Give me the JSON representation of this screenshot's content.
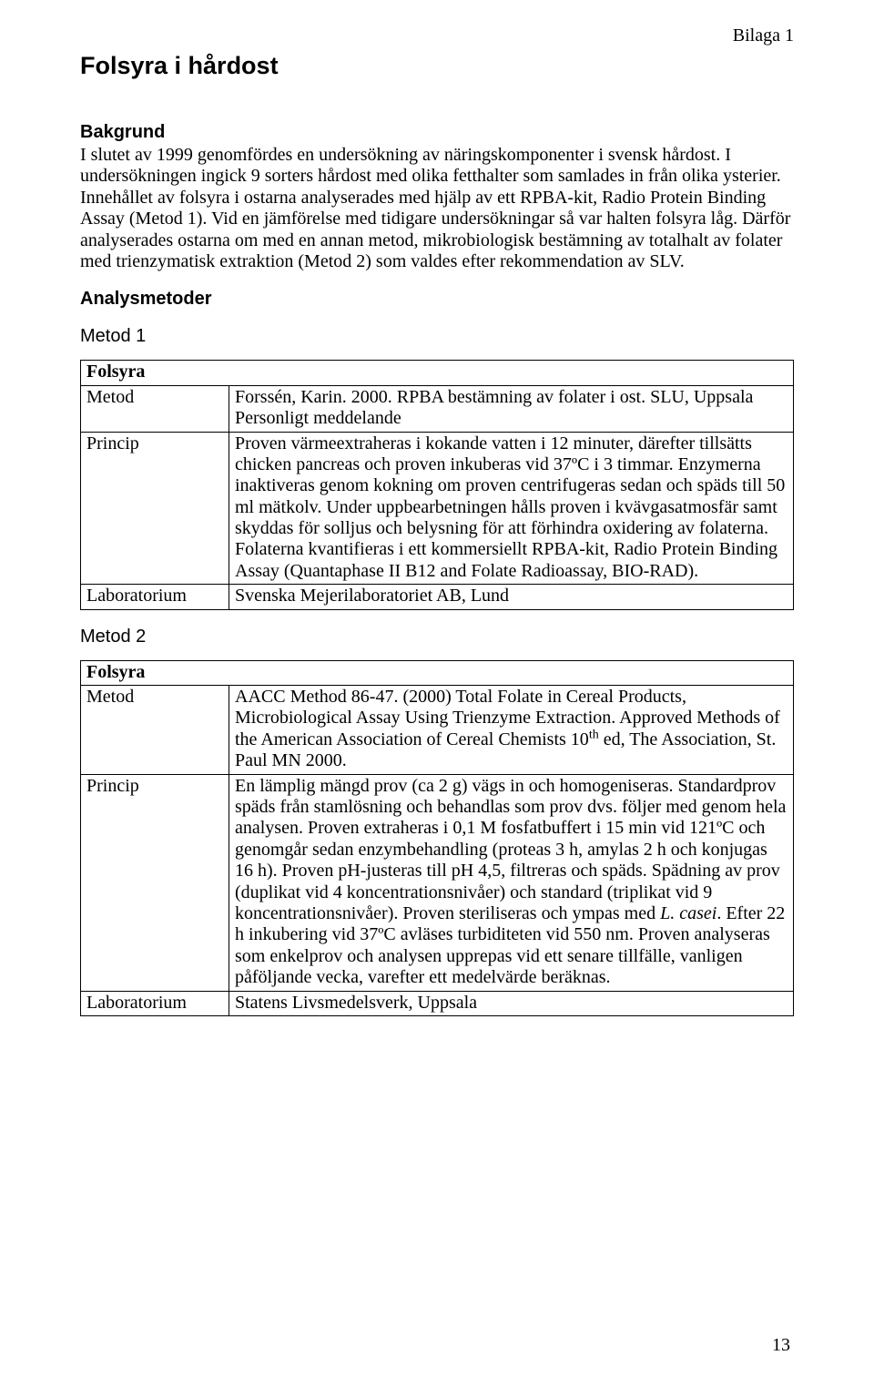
{
  "annex_label": "Bilaga 1",
  "doc_title": "Folsyra i hårdost",
  "background": {
    "heading": "Bakgrund",
    "text": "I slutet av 1999 genomfördes en undersökning av näringskomponenter i svensk hårdost. I undersökningen ingick 9 sorters hårdost med olika fetthalter som samlades in från olika ysterier. Innehållet av folsyra i ostarna analyserades med hjälp av ett RPBA-kit, Radio Protein Binding Assay (Metod 1). Vid en jämförelse med tidigare undersökningar så var halten folsyra låg. Därför analyserades ostarna om med en annan metod, mikrobiologisk bestämning av totalhalt av folater med trienzymatisk extraktion (Metod 2) som valdes efter rekommendation av SLV."
  },
  "methods_heading": "Analysmetoder",
  "method1": {
    "label": "Metod 1",
    "table_header": "Folsyra",
    "rows": {
      "metod_label": "Metod",
      "metod_value": "Forssén, Karin. 2000. RPBA bestämning av folater i ost. SLU, Uppsala Personligt meddelande",
      "princip_label": "Princip",
      "princip_value": "Proven värmeextraheras i kokande vatten i 12 minuter, därefter tillsätts chicken pancreas och proven inkuberas vid 37ºC i 3 timmar. Enzymerna inaktiveras genom kokning om proven centrifugeras sedan och späds till 50 ml mätkolv. Under uppbearbetningen hålls proven i kvävgasatmosfär samt skyddas för solljus och belysning för att förhindra oxidering av folaterna. Folaterna kvantifieras i ett kommersiellt RPBA-kit, Radio Protein Binding Assay (Quantaphase II B12 and Folate Radioassay, BIO-RAD).",
      "lab_label": "Laboratorium",
      "lab_value": "Svenska Mejerilaboratoriet AB, Lund"
    }
  },
  "method2": {
    "label": "Metod 2",
    "table_header": "Folsyra",
    "rows": {
      "metod_label": "Metod",
      "metod_value_pre": "AACC Method 86-47. (2000) Total Folate in Cereal Products, Microbiological Assay Using Trienzyme Extraction. Approved Methods of the American Association of Cereal Chemists 10",
      "metod_value_sup": "th",
      "metod_value_post": " ed, The Association, St. Paul MN 2000.",
      "princip_label": "Princip",
      "princip_value_pre": "En lämplig mängd prov (ca 2 g) vägs in och homogeniseras. Standardprov späds från stamlösning och behandlas som prov dvs. följer med genom hela analysen. Proven extraheras i 0,1 M fosfatbuffert i 15 min vid 121ºC och genomgår sedan enzymbehandling (proteas 3 h, amylas 2 h och konjugas 16 h). Proven pH-justeras till pH 4,5, filtreras och späds. Spädning av prov (duplikat vid 4 koncentrationsnivåer) och standard (triplikat vid 9 koncentrationsnivåer). Proven steriliseras och ympas med ",
      "princip_value_italic": "L. casei",
      "princip_value_post": ". Efter 22 h inkubering vid 37ºC avläses turbiditeten vid 550 nm. Proven analyseras som enkelprov och analysen upprepas vid ett senare tillfälle, vanligen påföljande vecka, varefter ett medelvärde beräknas.",
      "lab_label": "Laboratorium",
      "lab_value": "Statens Livsmedelsverk, Uppsala"
    }
  },
  "page_number": "13"
}
